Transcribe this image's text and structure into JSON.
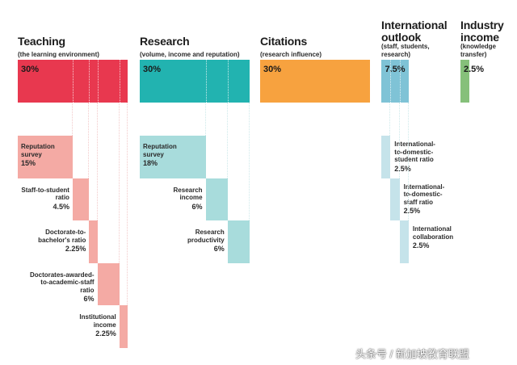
{
  "chart_data": {
    "type": "bar",
    "title": "",
    "categories": [
      {
        "key": "teaching",
        "name": "Teaching",
        "subtitle": "(the learning environment)",
        "weight": 30,
        "label": "30%",
        "color": "#e8384f",
        "sub_color": "#f4aaa4",
        "subs": [
          {
            "name": "Reputation\nsurvey",
            "weight": 15,
            "label": "15%"
          },
          {
            "name": "Staff-to-student\nratio",
            "weight": 4.5,
            "label": "4.5%"
          },
          {
            "name": "Doctorate-to-\nbachelor's ratio",
            "weight": 2.25,
            "label": "2.25%"
          },
          {
            "name": "Doctorates-awarded-\nto-academic-staff\nratio",
            "weight": 6,
            "label": "6%"
          },
          {
            "name": "Institutional\nincome",
            "weight": 2.25,
            "label": "2.25%"
          }
        ]
      },
      {
        "key": "research",
        "name": "Research",
        "subtitle": "(volume, income and reputation)",
        "weight": 30,
        "label": "30%",
        "color": "#22b3b0",
        "sub_color": "#a8dcdc",
        "subs": [
          {
            "name": "Reputation\nsurvey",
            "weight": 18,
            "label": "18%"
          },
          {
            "name": "Research\nincome",
            "weight": 6,
            "label": "6%"
          },
          {
            "name": "Research\nproductivity",
            "weight": 6,
            "label": "6%"
          }
        ]
      },
      {
        "key": "citations",
        "name": "Citations",
        "subtitle": "(research influence)",
        "weight": 30,
        "label": "30%",
        "color": "#f7a23f",
        "sub_color": "#f7a23f",
        "subs": []
      },
      {
        "key": "international",
        "name": "International\noutlook",
        "subtitle": "(staff, students,\nresearch)",
        "weight": 7.5,
        "label": "7.5%",
        "color": "#7fc3d6",
        "sub_color": "#c5e3ea",
        "subs": [
          {
            "name": "International-\nto-domestic-\nstudent ratio",
            "weight": 2.5,
            "label": "2.5%"
          },
          {
            "name": "International-\nto-domestic-\nstaff ratio",
            "weight": 2.5,
            "label": "2.5%"
          },
          {
            "name": "International\ncollaboration",
            "weight": 2.5,
            "label": "2.5%"
          }
        ]
      },
      {
        "key": "industry",
        "name": "Industry\nincome",
        "subtitle": "(knowledge\ntransfer)",
        "weight": 2.5,
        "label": "2.5%",
        "color": "#86c07a",
        "sub_color": "#86c07a",
        "subs": []
      }
    ]
  },
  "watermark": "头条号 / 新加坡教育联盟"
}
